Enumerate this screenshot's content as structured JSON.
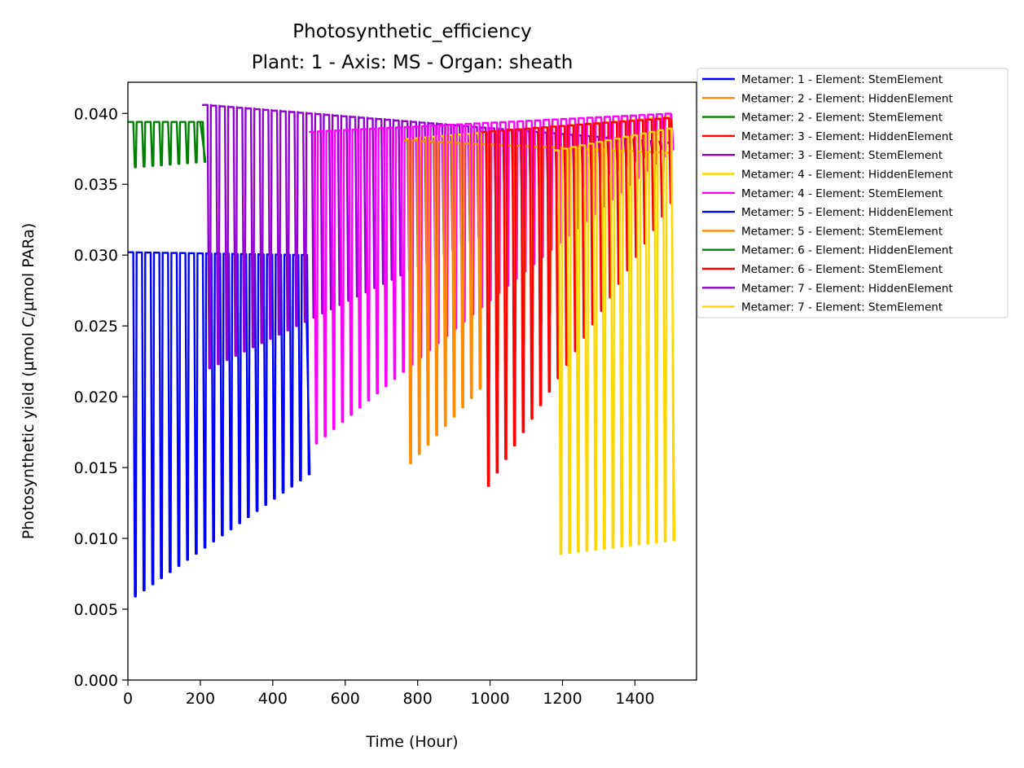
{
  "chart_data": {
    "type": "line",
    "title": "Photosynthetic_efficiency",
    "subtitle": "Plant: 1 - Axis: MS - Organ: sheath",
    "xlabel": "Time (Hour)",
    "ylabel": "Photosynthetic yield (µmol C/µmol PARa)",
    "xlim": [
      0,
      1570
    ],
    "ylim": [
      0,
      0.0422
    ],
    "xticks": [
      0,
      200,
      400,
      600,
      800,
      1000,
      1200,
      1400
    ],
    "xtick_labels": [
      "0",
      "200",
      "400",
      "600",
      "800",
      "1000",
      "1200",
      "1400"
    ],
    "yticks": [
      0,
      0.005,
      0.01,
      0.015,
      0.02,
      0.025,
      0.03,
      0.035,
      0.04
    ],
    "ytick_labels": [
      "0.000",
      "0.005",
      "0.010",
      "0.015",
      "0.020",
      "0.025",
      "0.030",
      "0.035",
      "0.040"
    ],
    "grid": false,
    "legend_position": "outside-top-right",
    "period_hours": 24,
    "series": [
      {
        "name": "Metamer: 1 - Element: StemElement",
        "color": "#0000ff",
        "x": [
          0,
          490
        ],
        "day_high": [
          0.0302,
          0.03
        ],
        "night_low": [
          0.0059,
          0.0147
        ]
      },
      {
        "name": "Metamer: 2 - Element: HiddenElement",
        "color": "#ff8c00",
        "x": [
          0,
          0
        ],
        "day_high": [
          0,
          0
        ],
        "night_low": [
          0,
          0
        ]
      },
      {
        "name": "Metamer: 2 - Element: StemElement",
        "color": "#008000",
        "x": [
          0,
          200
        ],
        "day_high": [
          0.0394,
          0.0394
        ],
        "night_low": [
          0.0362,
          0.0366
        ]
      },
      {
        "name": "Metamer: 3 - Element: HiddenElement",
        "color": "#ff0000",
        "x": [
          0,
          0
        ],
        "day_high": [
          0,
          0
        ],
        "night_low": [
          0,
          0
        ]
      },
      {
        "name": "Metamer: 3 - Element: StemElement",
        "color": "#9400d3",
        "x": [
          205,
          1500
        ],
        "day_high": [
          0.0406,
          0.0379
        ],
        "night_low": [
          0.022,
          0.0381
        ]
      },
      {
        "name": "Metamer: 4 - Element: HiddenElement",
        "color": "#ffd700",
        "x": [
          760,
          1500
        ],
        "day_high": [
          0.0382,
          0.0398
        ],
        "night_low": [
          0.0369,
          0.0385
        ]
      },
      {
        "name": "Metamer: 4 - Element: StemElement",
        "color": "#ff00ff",
        "x": [
          500,
          1500
        ],
        "day_high": [
          0.0387,
          0.04
        ],
        "night_low": [
          0.0167,
          0.0378
        ]
      },
      {
        "name": "Metamer: 5 - Element: HiddenElement",
        "color": "#0000ff",
        "x": [
          0,
          0
        ],
        "day_high": [
          0,
          0
        ],
        "night_low": [
          0,
          0
        ]
      },
      {
        "name": "Metamer: 5 - Element: StemElement",
        "color": "#ff8c00",
        "x": [
          760,
          1500
        ],
        "day_high": [
          0.0381,
          0.0372
        ],
        "night_low": [
          0.0153,
          0.0356
        ]
      },
      {
        "name": "Metamer: 6 - Element: HiddenElement",
        "color": "#008000",
        "x": [
          0,
          0
        ],
        "day_high": [
          0,
          0
        ],
        "night_low": [
          0,
          0
        ]
      },
      {
        "name": "Metamer: 6 - Element: StemElement",
        "color": "#ff0000",
        "x": [
          975,
          1500
        ],
        "day_high": [
          0.0387,
          0.0397
        ],
        "night_low": [
          0.0137,
          0.0345
        ]
      },
      {
        "name": "Metamer: 7 - Element: HiddenElement",
        "color": "#9400d3",
        "x": [
          0,
          0
        ],
        "day_high": [
          0,
          0
        ],
        "night_low": [
          0,
          0
        ]
      },
      {
        "name": "Metamer: 7 - Element: StemElement",
        "color": "#ffd700",
        "x": [
          1175,
          1500
        ],
        "day_high": [
          0.0374,
          0.039
        ],
        "night_low": [
          0.0089,
          0.0099
        ]
      }
    ]
  }
}
